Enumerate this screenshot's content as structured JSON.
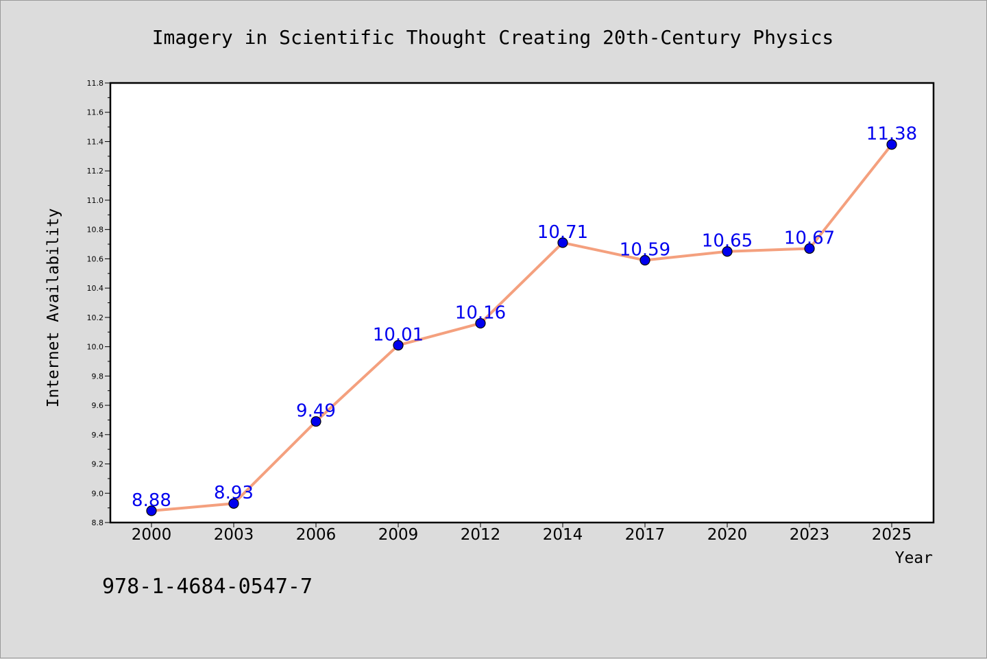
{
  "chart_data": {
    "type": "line",
    "title": "Imagery in Scientific Thought Creating 20th-Century Physics",
    "xlabel": "Year",
    "ylabel": "Internet Availability",
    "categories": [
      "2000",
      "2003",
      "2006",
      "2009",
      "2012",
      "2014",
      "2017",
      "2020",
      "2023",
      "2025"
    ],
    "series": [
      {
        "values": [
          8.88,
          8.93,
          9.49,
          10.01,
          10.16,
          10.71,
          10.59,
          10.65,
          10.67,
          11.38
        ],
        "data_labels": [
          "8.88",
          "8.93",
          "9.49",
          "10.01",
          "10.16",
          "10.71",
          "10.59",
          "10.65",
          "10.67",
          "11.38"
        ],
        "line_color": "#f4a07e",
        "marker_color": "#0000ee",
        "label_color": "#0000ee"
      }
    ],
    "ylim": [
      8.8,
      11.8
    ],
    "yticks": [
      "8.8",
      "9.0",
      "9.2",
      "9.4",
      "9.6",
      "9.8",
      "10.0",
      "10.2",
      "10.4",
      "10.6",
      "10.8",
      "11.0",
      "11.2",
      "11.4",
      "11.6",
      "11.8"
    ],
    "grid": false,
    "legend": "none",
    "background": "#dcdcdc",
    "plot_background": "#ffffff"
  },
  "footer": {
    "isbn": "978-1-4684-0547-7"
  }
}
